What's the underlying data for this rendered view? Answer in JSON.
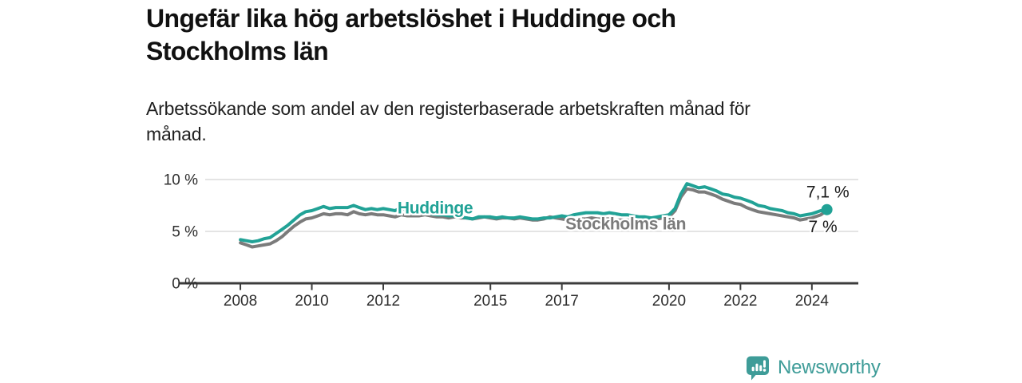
{
  "header": {
    "title_line1": "Ungefär lika hög arbetslöshet i Huddinge och",
    "title_line2": "Stockholms län",
    "subtitle_line1": "Arbetssökande som andel av den registerbaserade arbetskraften månad för",
    "subtitle_line2": "månad."
  },
  "branding": {
    "logo_text": "Newsworthy",
    "logo_color": "#3E9C98"
  },
  "colors": {
    "huddinge_line": "#21A296",
    "stockholm_line": "#7B7B7B",
    "axis": "#3C3C3C",
    "grid": "#DBDBDB",
    "tick_text": "#2E2E2E",
    "value_text": "#1A1A1A"
  },
  "chart_data": {
    "type": "line",
    "title": "Ungefär lika hög arbetslöshet i Huddinge och Stockholms län",
    "subtitle": "Arbetssökande som andel av den registerbaserade arbetskraften månad för månad.",
    "xlabel": "",
    "ylabel": "",
    "grid": "horizontal",
    "legend_position": "inline",
    "xlim": [
      2006.3,
      2025.3
    ],
    "ylim": [
      0,
      11.5
    ],
    "x_ticks": [
      2008,
      2010,
      2012,
      2015,
      2017,
      2020,
      2022,
      2024
    ],
    "y_ticks": [
      {
        "value": 0,
        "label": "0 %"
      },
      {
        "value": 5,
        "label": "5 %"
      },
      {
        "value": 10,
        "label": "10 %"
      }
    ],
    "x": [
      2008.0,
      2008.17,
      2008.33,
      2008.5,
      2008.67,
      2008.83,
      2009.0,
      2009.17,
      2009.33,
      2009.5,
      2009.67,
      2009.83,
      2010.0,
      2010.17,
      2010.33,
      2010.5,
      2010.67,
      2010.83,
      2011.0,
      2011.17,
      2011.33,
      2011.5,
      2011.67,
      2011.83,
      2012.0,
      2012.17,
      2012.33,
      2012.5,
      2012.67,
      2012.83,
      2013.0,
      2013.17,
      2013.33,
      2013.5,
      2013.67,
      2013.83,
      2014.0,
      2014.17,
      2014.33,
      2014.5,
      2014.67,
      2014.83,
      2015.0,
      2015.17,
      2015.33,
      2015.5,
      2015.67,
      2015.83,
      2016.0,
      2016.17,
      2016.33,
      2016.5,
      2016.67,
      2016.83,
      2017.0,
      2017.17,
      2017.33,
      2017.5,
      2017.67,
      2017.83,
      2018.0,
      2018.17,
      2018.33,
      2018.5,
      2018.67,
      2018.83,
      2019.0,
      2019.17,
      2019.33,
      2019.5,
      2019.67,
      2019.83,
      2020.0,
      2020.17,
      2020.33,
      2020.5,
      2020.67,
      2020.83,
      2021.0,
      2021.17,
      2021.33,
      2021.5,
      2021.67,
      2021.83,
      2022.0,
      2022.17,
      2022.33,
      2022.5,
      2022.67,
      2022.83,
      2023.0,
      2023.17,
      2023.33,
      2023.5,
      2023.67,
      2023.83,
      2024.0,
      2024.08,
      2024.17,
      2024.25,
      2024.33,
      2024.42
    ],
    "series": [
      {
        "name": "Stockholms län",
        "color": "#7B7B7B",
        "end_label": "7 %",
        "end_dot": false,
        "inline_label": {
          "x": 2017.1,
          "y": 5.2
        },
        "values": [
          3.9,
          3.7,
          3.5,
          3.6,
          3.7,
          3.8,
          4.1,
          4.5,
          5.0,
          5.5,
          5.9,
          6.2,
          6.3,
          6.5,
          6.7,
          6.6,
          6.7,
          6.7,
          6.6,
          6.9,
          6.7,
          6.6,
          6.7,
          6.6,
          6.6,
          6.5,
          6.4,
          6.6,
          6.5,
          6.5,
          6.5,
          6.6,
          6.5,
          6.4,
          6.4,
          6.3,
          6.4,
          6.3,
          6.3,
          6.2,
          6.3,
          6.4,
          6.3,
          6.2,
          6.3,
          6.3,
          6.2,
          6.3,
          6.2,
          6.1,
          6.1,
          6.2,
          6.4,
          6.3,
          6.2,
          6.1,
          6.1,
          6.2,
          6.2,
          6.3,
          6.2,
          6.2,
          6.2,
          6.1,
          6.1,
          6.1,
          6.0,
          6.0,
          6.1,
          6.1,
          6.2,
          6.3,
          6.4,
          7.0,
          8.3,
          9.1,
          9.0,
          8.8,
          8.8,
          8.6,
          8.4,
          8.1,
          7.9,
          7.7,
          7.6,
          7.3,
          7.1,
          6.9,
          6.8,
          6.7,
          6.6,
          6.5,
          6.4,
          6.3,
          6.1,
          6.2,
          6.3,
          6.4,
          6.5,
          6.6,
          6.8,
          7.0
        ]
      },
      {
        "name": "Huddinge",
        "color": "#21A296",
        "end_label": "7,1 %",
        "end_dot": true,
        "inline_label": {
          "x": 2012.4,
          "y": 6.75
        },
        "values": [
          4.2,
          4.1,
          4.0,
          4.1,
          4.3,
          4.4,
          4.8,
          5.2,
          5.6,
          6.1,
          6.6,
          6.9,
          7.0,
          7.2,
          7.4,
          7.2,
          7.3,
          7.3,
          7.3,
          7.5,
          7.3,
          7.1,
          7.2,
          7.1,
          7.2,
          7.1,
          7.0,
          7.3,
          7.0,
          6.9,
          6.8,
          6.9,
          6.7,
          6.6,
          6.6,
          6.5,
          6.5,
          6.4,
          6.3,
          6.2,
          6.4,
          6.4,
          6.4,
          6.3,
          6.4,
          6.3,
          6.3,
          6.4,
          6.3,
          6.2,
          6.2,
          6.3,
          6.3,
          6.4,
          6.5,
          6.4,
          6.6,
          6.7,
          6.8,
          6.8,
          6.8,
          6.7,
          6.8,
          6.7,
          6.6,
          6.6,
          6.5,
          6.4,
          6.4,
          6.3,
          6.4,
          6.5,
          6.6,
          7.2,
          8.6,
          9.6,
          9.4,
          9.2,
          9.3,
          9.1,
          8.9,
          8.6,
          8.5,
          8.3,
          8.2,
          8.0,
          7.8,
          7.5,
          7.4,
          7.2,
          7.1,
          7.0,
          6.8,
          6.7,
          6.5,
          6.6,
          6.7,
          6.8,
          6.9,
          7.0,
          7.0,
          7.1
        ]
      }
    ]
  }
}
